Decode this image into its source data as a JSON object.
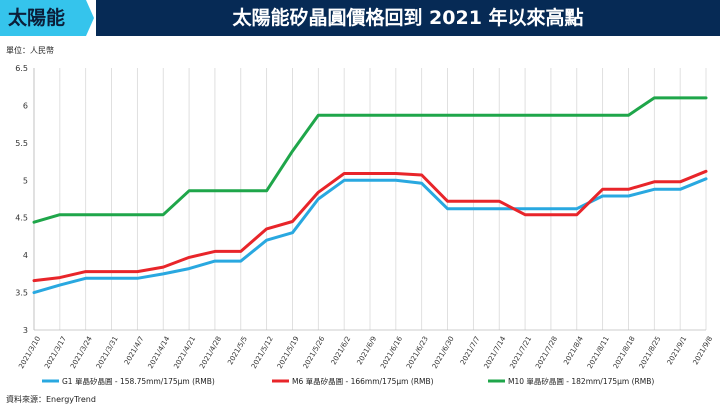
{
  "header": {
    "tag": "太陽能",
    "title": "太陽能矽晶圓價格回到 2021 年以來高點"
  },
  "unit_label": "單位：人民幣",
  "source_label": "資料來源：EnergyTrend",
  "chart_data": {
    "type": "line",
    "title": "太陽能矽晶圓價格回到 2021 年以來高點",
    "ylabel": "單位：人民幣",
    "ylim": [
      3,
      6.5
    ],
    "yticks": [
      "3",
      "3.5",
      "4",
      "4.5",
      "5",
      "5.5",
      "6",
      "6.5"
    ],
    "grid": "vertical",
    "legend_position": "bottom",
    "categories": [
      "2021/3/10",
      "2021/3/17",
      "2021/3/24",
      "2021/3/31",
      "2021/4/7",
      "2021/4/14",
      "2021/4/21",
      "2021/4/28",
      "2021/5/5",
      "2021/5/12",
      "2021/5/19",
      "2021/5/26",
      "2021/6/2",
      "2021/6/9",
      "2021/6/16",
      "2021/6/23",
      "2021/6/30",
      "2021/7/7",
      "2021/7/14",
      "2021/7/21",
      "2021/7/28",
      "2021/8/4",
      "2021/8/11",
      "2021/8/18",
      "2021/8/25",
      "2021/9/1",
      "2021/9/8"
    ],
    "series": [
      {
        "name": "G1 單晶矽晶圓 - 158.75mm/175μm (RMB)",
        "color": "#29a8e0",
        "values": [
          3.5,
          3.6,
          3.69,
          3.69,
          3.69,
          3.75,
          3.82,
          3.92,
          3.92,
          4.2,
          4.3,
          4.75,
          5.0,
          5.0,
          5.0,
          4.96,
          4.62,
          4.62,
          4.62,
          4.62,
          4.62,
          4.62,
          4.79,
          4.79,
          4.88,
          4.88,
          5.02
        ]
      },
      {
        "name": "M6 單晶矽晶圓 - 166mm/175μm (RMB)",
        "color": "#e8252a",
        "values": [
          3.66,
          3.7,
          3.78,
          3.78,
          3.78,
          3.84,
          3.97,
          4.05,
          4.05,
          4.35,
          4.45,
          4.84,
          5.09,
          5.09,
          5.09,
          5.07,
          4.72,
          4.72,
          4.72,
          4.54,
          4.54,
          4.54,
          4.88,
          4.88,
          4.98,
          4.98,
          5.12
        ]
      },
      {
        "name": "M10 單晶矽晶圓 - 182mm/175μm (RMB)",
        "color": "#1fa64a",
        "values": [
          4.44,
          4.54,
          4.54,
          4.54,
          4.54,
          4.54,
          4.86,
          4.86,
          4.86,
          4.86,
          5.39,
          5.87,
          5.87,
          5.87,
          5.87,
          5.87,
          5.87,
          5.87,
          5.87,
          5.87,
          5.87,
          5.87,
          5.87,
          5.87,
          6.1,
          6.1,
          6.1
        ]
      }
    ]
  }
}
